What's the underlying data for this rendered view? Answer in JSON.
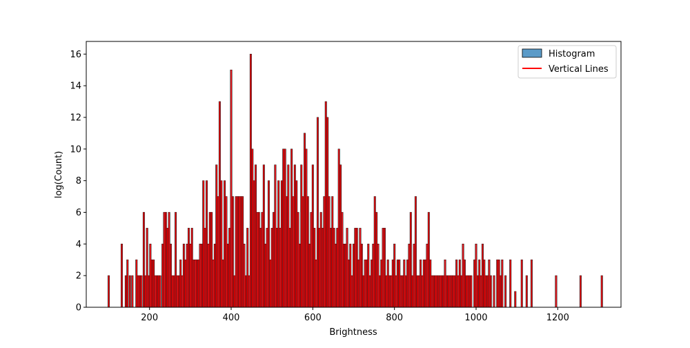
{
  "chart_data": {
    "type": "bar",
    "title": "",
    "xlabel": "Brightness",
    "ylabel": "log(Count)",
    "xlim": [
      45,
      1355
    ],
    "ylim": [
      0,
      16.8
    ],
    "grid": false,
    "legend": {
      "placement": "top-right",
      "entries": [
        {
          "label": "Histogram",
          "kind": "patch",
          "color": "#5b9bc8"
        },
        {
          "label": "Vertical Lines",
          "kind": "line",
          "color": "#ff0000"
        }
      ]
    },
    "x_ticks": [
      {
        "value": 200,
        "label": "200"
      },
      {
        "value": 400,
        "label": "400"
      },
      {
        "value": 600,
        "label": "600"
      },
      {
        "value": 800,
        "label": "800"
      },
      {
        "value": 1000,
        "label": "1000"
      },
      {
        "value": 1200,
        "label": "1200"
      }
    ],
    "y_ticks": [
      {
        "value": 0,
        "label": "0"
      },
      {
        "value": 2,
        "label": "2"
      },
      {
        "value": 4,
        "label": "4"
      },
      {
        "value": 6,
        "label": "6"
      },
      {
        "value": 8,
        "label": "8"
      },
      {
        "value": 10,
        "label": "10"
      },
      {
        "value": 12,
        "label": "12"
      },
      {
        "value": 14,
        "label": "14"
      },
      {
        "value": 16,
        "label": "16"
      }
    ],
    "colors": {
      "bar_fill": "#1f77b4",
      "bar_edge": "#000000",
      "line": "#ff0000"
    },
    "series": [
      {
        "name": "Vertical Lines",
        "points": [
          [
            100,
            2
          ],
          [
            132,
            4
          ],
          [
            142,
            2
          ],
          [
            146,
            3
          ],
          [
            152,
            2
          ],
          [
            158,
            2
          ],
          [
            168,
            3
          ],
          [
            172,
            2
          ],
          [
            176,
            2
          ],
          [
            180,
            2
          ],
          [
            186,
            6
          ],
          [
            190,
            2
          ],
          [
            194,
            5
          ],
          [
            198,
            2
          ],
          [
            202,
            4
          ],
          [
            206,
            3
          ],
          [
            210,
            3
          ],
          [
            214,
            2
          ],
          [
            218,
            2
          ],
          [
            222,
            2
          ],
          [
            226,
            2
          ],
          [
            232,
            4
          ],
          [
            236,
            6
          ],
          [
            240,
            6
          ],
          [
            244,
            5
          ],
          [
            248,
            6
          ],
          [
            252,
            4
          ],
          [
            256,
            2
          ],
          [
            260,
            2
          ],
          [
            264,
            6
          ],
          [
            268,
            2
          ],
          [
            272,
            2
          ],
          [
            276,
            3
          ],
          [
            280,
            2
          ],
          [
            284,
            4
          ],
          [
            288,
            3
          ],
          [
            292,
            4
          ],
          [
            296,
            5
          ],
          [
            300,
            4
          ],
          [
            304,
            5
          ],
          [
            308,
            3
          ],
          [
            312,
            3
          ],
          [
            316,
            3
          ],
          [
            320,
            3
          ],
          [
            324,
            4
          ],
          [
            328,
            4
          ],
          [
            332,
            8
          ],
          [
            336,
            5
          ],
          [
            340,
            8
          ],
          [
            344,
            4
          ],
          [
            348,
            6
          ],
          [
            352,
            6
          ],
          [
            356,
            3
          ],
          [
            360,
            4
          ],
          [
            364,
            9
          ],
          [
            368,
            7
          ],
          [
            372,
            13
          ],
          [
            376,
            8
          ],
          [
            380,
            3
          ],
          [
            384,
            8
          ],
          [
            388,
            7
          ],
          [
            392,
            4
          ],
          [
            396,
            5
          ],
          [
            400,
            15
          ],
          [
            404,
            7
          ],
          [
            408,
            2
          ],
          [
            412,
            7
          ],
          [
            416,
            7
          ],
          [
            420,
            7
          ],
          [
            424,
            7
          ],
          [
            428,
            7
          ],
          [
            432,
            4
          ],
          [
            436,
            2
          ],
          [
            440,
            5
          ],
          [
            444,
            2
          ],
          [
            448,
            16
          ],
          [
            452,
            10
          ],
          [
            456,
            8
          ],
          [
            460,
            9
          ],
          [
            464,
            6
          ],
          [
            468,
            6
          ],
          [
            472,
            5
          ],
          [
            476,
            6
          ],
          [
            480,
            9
          ],
          [
            484,
            4
          ],
          [
            488,
            5
          ],
          [
            492,
            8
          ],
          [
            496,
            3
          ],
          [
            500,
            5
          ],
          [
            504,
            6
          ],
          [
            508,
            9
          ],
          [
            512,
            5
          ],
          [
            516,
            8
          ],
          [
            520,
            5
          ],
          [
            524,
            8
          ],
          [
            528,
            10
          ],
          [
            532,
            10
          ],
          [
            536,
            7
          ],
          [
            540,
            9
          ],
          [
            544,
            5
          ],
          [
            548,
            10
          ],
          [
            552,
            7
          ],
          [
            556,
            9
          ],
          [
            560,
            8
          ],
          [
            564,
            6
          ],
          [
            568,
            4
          ],
          [
            572,
            9
          ],
          [
            576,
            7
          ],
          [
            580,
            11
          ],
          [
            584,
            10
          ],
          [
            588,
            7
          ],
          [
            592,
            4
          ],
          [
            596,
            6
          ],
          [
            600,
            9
          ],
          [
            604,
            5
          ],
          [
            608,
            3
          ],
          [
            612,
            12
          ],
          [
            616,
            5
          ],
          [
            620,
            6
          ],
          [
            624,
            5
          ],
          [
            628,
            7
          ],
          [
            632,
            13
          ],
          [
            636,
            12
          ],
          [
            640,
            7
          ],
          [
            644,
            5
          ],
          [
            648,
            7
          ],
          [
            652,
            5
          ],
          [
            656,
            4
          ],
          [
            660,
            5
          ],
          [
            664,
            10
          ],
          [
            668,
            9
          ],
          [
            672,
            6
          ],
          [
            676,
            4
          ],
          [
            680,
            4
          ],
          [
            684,
            5
          ],
          [
            688,
            3
          ],
          [
            692,
            4
          ],
          [
            696,
            2
          ],
          [
            700,
            4
          ],
          [
            704,
            5
          ],
          [
            708,
            5
          ],
          [
            712,
            3
          ],
          [
            716,
            5
          ],
          [
            720,
            4
          ],
          [
            724,
            2
          ],
          [
            728,
            3
          ],
          [
            732,
            3
          ],
          [
            736,
            4
          ],
          [
            740,
            2
          ],
          [
            744,
            3
          ],
          [
            748,
            4
          ],
          [
            752,
            7
          ],
          [
            756,
            6
          ],
          [
            760,
            4
          ],
          [
            764,
            2
          ],
          [
            768,
            3
          ],
          [
            772,
            5
          ],
          [
            776,
            5
          ],
          [
            780,
            2
          ],
          [
            784,
            3
          ],
          [
            788,
            2
          ],
          [
            792,
            2
          ],
          [
            796,
            3
          ],
          [
            800,
            4
          ],
          [
            804,
            2
          ],
          [
            808,
            3
          ],
          [
            812,
            3
          ],
          [
            816,
            2
          ],
          [
            820,
            2
          ],
          [
            824,
            3
          ],
          [
            828,
            2
          ],
          [
            832,
            3
          ],
          [
            836,
            4
          ],
          [
            840,
            6
          ],
          [
            844,
            2
          ],
          [
            848,
            4
          ],
          [
            852,
            7
          ],
          [
            856,
            2
          ],
          [
            860,
            2
          ],
          [
            864,
            3
          ],
          [
            868,
            2
          ],
          [
            872,
            3
          ],
          [
            876,
            3
          ],
          [
            880,
            4
          ],
          [
            884,
            6
          ],
          [
            888,
            3
          ],
          [
            892,
            2
          ],
          [
            896,
            2
          ],
          [
            900,
            2
          ],
          [
            904,
            2
          ],
          [
            908,
            2
          ],
          [
            912,
            2
          ],
          [
            916,
            2
          ],
          [
            920,
            2
          ],
          [
            924,
            3
          ],
          [
            928,
            2
          ],
          [
            932,
            2
          ],
          [
            936,
            2
          ],
          [
            940,
            2
          ],
          [
            944,
            2
          ],
          [
            948,
            2
          ],
          [
            952,
            3
          ],
          [
            956,
            2
          ],
          [
            960,
            3
          ],
          [
            964,
            2
          ],
          [
            968,
            4
          ],
          [
            972,
            3
          ],
          [
            976,
            2
          ],
          [
            980,
            2
          ],
          [
            984,
            2
          ],
          [
            988,
            2
          ],
          [
            996,
            3
          ],
          [
            1000,
            4
          ],
          [
            1004,
            2
          ],
          [
            1008,
            3
          ],
          [
            1012,
            2
          ],
          [
            1016,
            4
          ],
          [
            1020,
            3
          ],
          [
            1024,
            2
          ],
          [
            1028,
            2
          ],
          [
            1032,
            3
          ],
          [
            1036,
            2
          ],
          [
            1044,
            2
          ],
          [
            1052,
            3
          ],
          [
            1056,
            3
          ],
          [
            1060,
            2
          ],
          [
            1064,
            3
          ],
          [
            1072,
            2
          ],
          [
            1084,
            3
          ],
          [
            1096,
            1
          ],
          [
            1112,
            3
          ],
          [
            1124,
            2
          ],
          [
            1136,
            3
          ],
          [
            1196,
            2
          ],
          [
            1256,
            2
          ],
          [
            1308,
            2
          ]
        ]
      }
    ]
  }
}
